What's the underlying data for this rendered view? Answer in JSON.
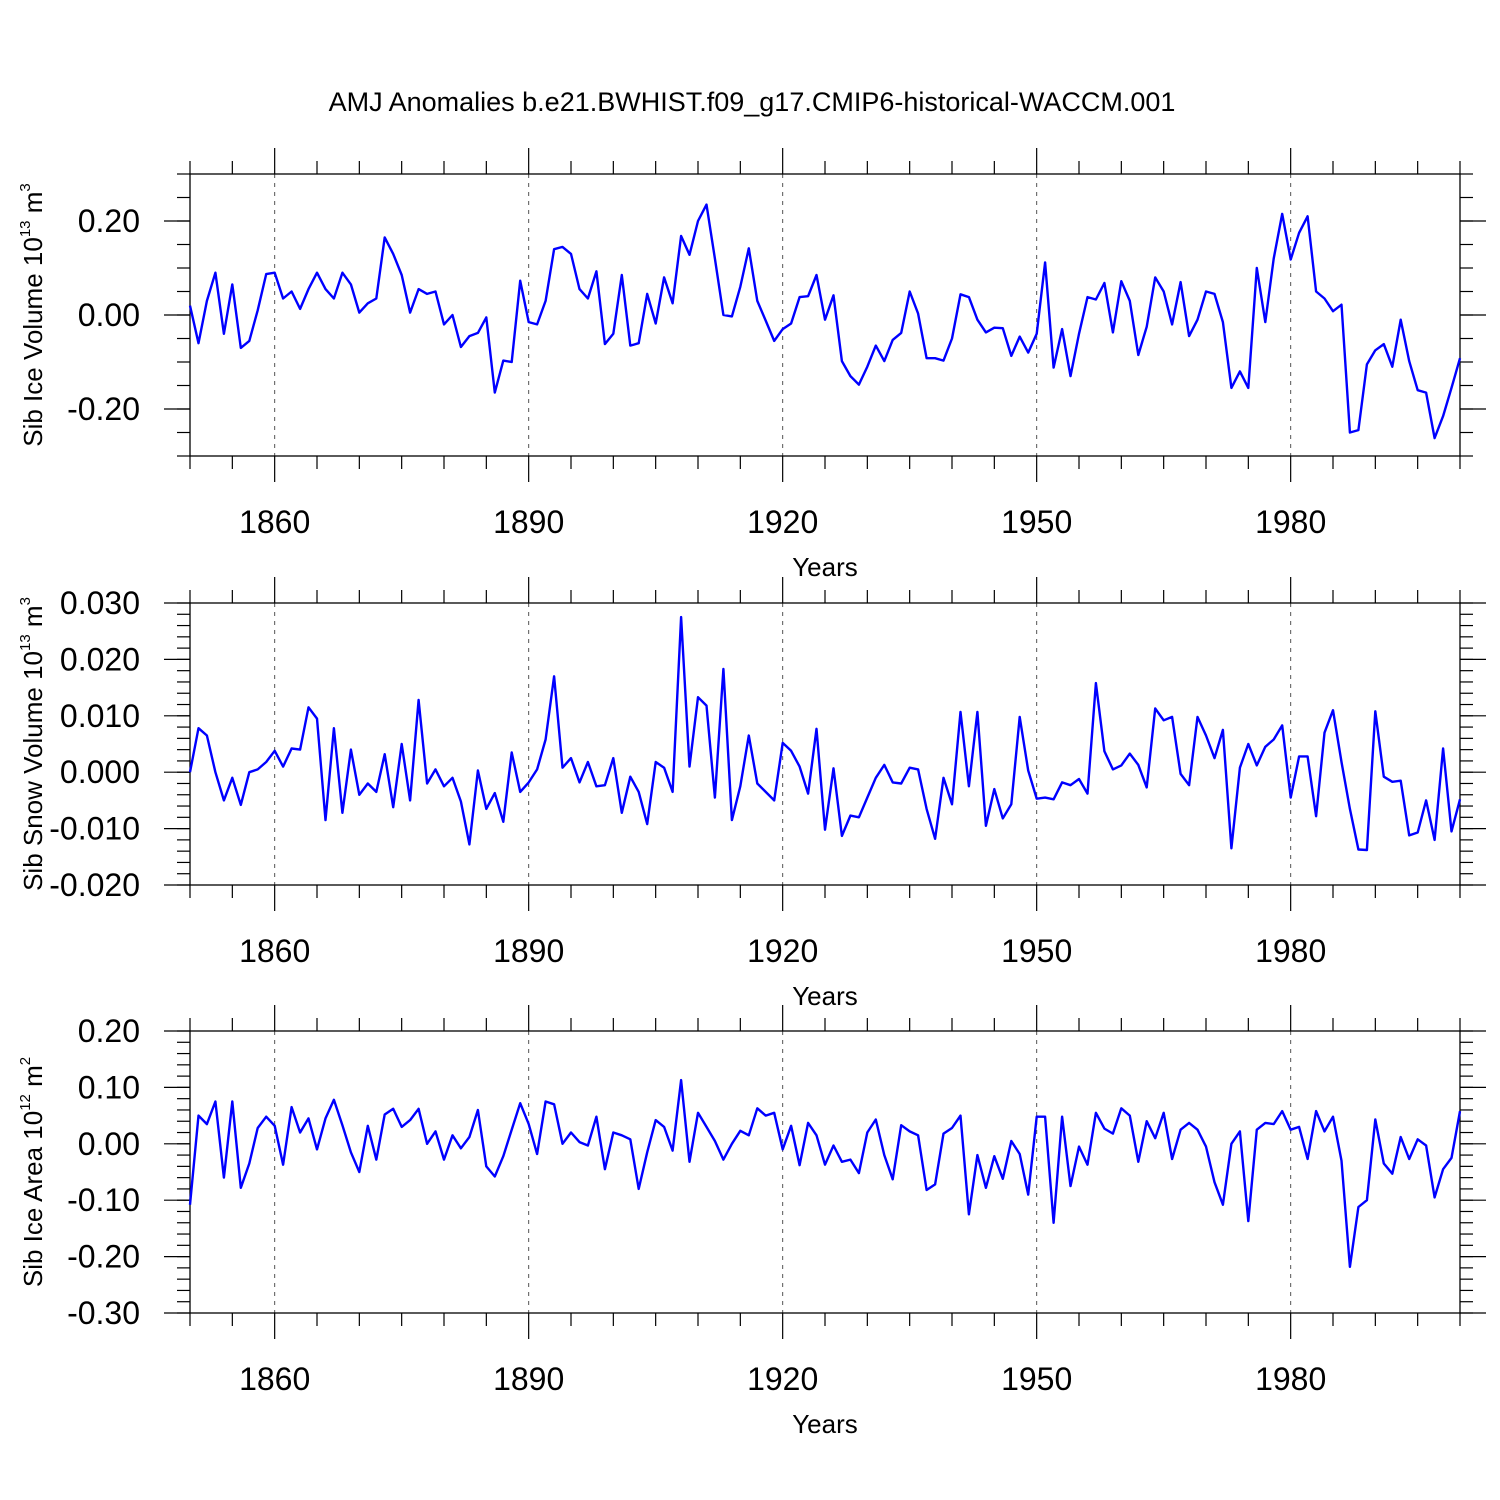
{
  "figure_title": "AMJ Anomalies b.e21.BWHIST.f09_g17.CMIP6-historical-WACCM.001",
  "series_color": "#0000ff",
  "chart_data": [
    {
      "type": "line",
      "ylabel": {
        "text": "Sib Ice Volume 10",
        "exponent": "13",
        "unit": " m",
        "unit_exponent": "3"
      },
      "xlabel": "Years",
      "xlim": [
        1850,
        2000
      ],
      "ylim": [
        -0.3,
        0.3
      ],
      "xticks": [
        1860,
        1890,
        1920,
        1950,
        1980
      ],
      "yticks": [
        -0.2,
        0.0,
        0.2
      ],
      "ytick_labels": [
        "-0.20",
        "0.00",
        "0.20"
      ],
      "ytick_minor_step": 0.05,
      "series": [
        {
          "name": "Sib Ice Volume",
          "start_year": 1850,
          "values": [
            0.02,
            -0.06,
            0.03,
            0.09,
            -0.04,
            0.065,
            -0.07,
            -0.055,
            0.01,
            0.087,
            0.09,
            0.035,
            0.05,
            0.013,
            0.055,
            0.09,
            0.055,
            0.035,
            0.09,
            0.065,
            0.005,
            0.025,
            0.035,
            0.165,
            0.13,
            0.085,
            0.005,
            0.055,
            0.045,
            0.05,
            -0.02,
            0.0,
            -0.068,
            -0.045,
            -0.038,
            -0.005,
            -0.165,
            -0.097,
            -0.1,
            0.073,
            -0.015,
            -0.02,
            0.03,
            0.14,
            0.145,
            0.13,
            0.055,
            0.035,
            0.093,
            -0.062,
            -0.04,
            0.085,
            -0.065,
            -0.06,
            0.045,
            -0.018,
            0.08,
            0.025,
            0.168,
            0.128,
            0.2,
            0.235,
            0.12,
            0.0,
            -0.003,
            0.06,
            0.142,
            0.03,
            -0.012,
            -0.055,
            -0.03,
            -0.018,
            0.038,
            0.04,
            0.085,
            -0.01,
            0.042,
            -0.098,
            -0.13,
            -0.148,
            -0.11,
            -0.065,
            -0.098,
            -0.053,
            -0.038,
            0.05,
            0.003,
            -0.092,
            -0.092,
            -0.097,
            -0.05,
            0.044,
            0.038,
            -0.01,
            -0.037,
            -0.027,
            -0.028,
            -0.087,
            -0.046,
            -0.08,
            -0.04,
            0.112,
            -0.112,
            -0.03,
            -0.13,
            -0.04,
            0.038,
            0.033,
            0.068,
            -0.037,
            0.072,
            0.03,
            -0.085,
            -0.025,
            0.08,
            0.05,
            -0.02,
            0.07,
            -0.045,
            -0.01,
            0.05,
            0.045,
            -0.015,
            -0.155,
            -0.12,
            -0.155,
            0.1,
            -0.015,
            0.12,
            0.215,
            0.118,
            0.175,
            0.21,
            0.05,
            0.035,
            0.008,
            0.022,
            -0.25,
            -0.245,
            -0.105,
            -0.075,
            -0.062,
            -0.11,
            -0.01,
            -0.098,
            -0.16,
            -0.165,
            -0.262,
            -0.215,
            -0.155,
            -0.092
          ]
        }
      ]
    },
    {
      "type": "line",
      "ylabel": {
        "text": "Sib Snow Volume 10",
        "exponent": "13",
        "unit": " m",
        "unit_exponent": "3"
      },
      "xlabel": "Years",
      "xlim": [
        1850,
        2000
      ],
      "ylim": [
        -0.02,
        0.03
      ],
      "xticks": [
        1860,
        1890,
        1920,
        1950,
        1980
      ],
      "yticks": [
        -0.02,
        -0.01,
        0.0,
        0.01,
        0.02,
        0.03
      ],
      "ytick_labels": [
        "-0.020",
        "-0.010",
        "0.000",
        "0.010",
        "0.020",
        "0.030"
      ],
      "ytick_minor_step": 0.002,
      "series": [
        {
          "name": "Sib Snow Volume",
          "start_year": 1850,
          "values": [
            0.0,
            0.0078,
            0.0065,
            0.0,
            -0.005,
            -0.001,
            -0.0058,
            0.0,
            0.0005,
            0.0018,
            0.0038,
            0.001,
            0.0042,
            0.004,
            0.0115,
            0.0095,
            -0.0085,
            0.0078,
            -0.0072,
            0.004,
            -0.004,
            -0.002,
            -0.0035,
            0.0032,
            -0.0062,
            0.005,
            -0.005,
            0.0128,
            -0.002,
            0.0005,
            -0.0025,
            -0.001,
            -0.0052,
            -0.0128,
            0.0003,
            -0.0065,
            -0.0037,
            -0.0088,
            0.0035,
            -0.0035,
            -0.0018,
            0.0005,
            0.0058,
            0.017,
            0.0008,
            0.0025,
            -0.0018,
            0.0018,
            -0.0025,
            -0.0023,
            0.0025,
            -0.0072,
            -0.0008,
            -0.0035,
            -0.0092,
            0.0018,
            0.0008,
            -0.0035,
            0.0275,
            0.001,
            0.0133,
            0.0118,
            -0.0045,
            0.0183,
            -0.0085,
            -0.0025,
            0.0065,
            -0.002,
            -0.0035,
            -0.005,
            0.0052,
            0.0038,
            0.001,
            -0.0038,
            0.0077,
            -0.0102,
            0.0007,
            -0.0113,
            -0.0077,
            -0.008,
            -0.0045,
            -0.001,
            0.0013,
            -0.0018,
            -0.002,
            0.0008,
            0.0005,
            -0.0065,
            -0.0118,
            -0.001,
            -0.0057,
            0.0107,
            -0.0025,
            0.0107,
            -0.0095,
            -0.003,
            -0.0082,
            -0.0057,
            0.0098,
            0.0003,
            -0.0047,
            -0.0045,
            -0.0048,
            -0.0018,
            -0.0023,
            -0.0012,
            -0.0038,
            0.0158,
            0.0037,
            0.0005,
            0.0012,
            0.0033,
            0.0013,
            -0.0027,
            0.0113,
            0.0092,
            0.0098,
            -0.0003,
            -0.0023,
            0.0098,
            0.0065,
            0.0025,
            0.0075,
            -0.0135,
            0.0008,
            0.005,
            0.0012,
            0.0045,
            0.0058,
            0.0083,
            -0.0045,
            0.0028,
            0.0028,
            -0.0078,
            0.007,
            0.011,
            0.0018,
            -0.0065,
            -0.0137,
            -0.0138,
            0.0108,
            -0.0008,
            -0.0017,
            -0.0015,
            -0.0112,
            -0.0107,
            -0.005,
            -0.012,
            0.0042,
            -0.0105,
            -0.0048
          ]
        }
      ]
    },
    {
      "type": "line",
      "ylabel": {
        "text": "Sib Ice Area 10",
        "exponent": "12",
        "unit": " m",
        "unit_exponent": "2"
      },
      "xlabel": "Years",
      "xlim": [
        1850,
        2000
      ],
      "ylim": [
        -0.3,
        0.2
      ],
      "xticks": [
        1860,
        1890,
        1920,
        1950,
        1980
      ],
      "yticks": [
        -0.3,
        -0.2,
        -0.1,
        0.0,
        0.1,
        0.2
      ],
      "ytick_labels": [
        "-0.30",
        "-0.20",
        "-0.10",
        "0.00",
        "0.10",
        "0.20"
      ],
      "ytick_minor_step": 0.02,
      "series": [
        {
          "name": "Sib Ice Area",
          "start_year": 1850,
          "values": [
            -0.108,
            0.05,
            0.035,
            0.075,
            -0.06,
            0.075,
            -0.078,
            -0.035,
            0.028,
            0.048,
            0.032,
            -0.037,
            0.065,
            0.02,
            0.045,
            -0.01,
            0.045,
            0.078,
            0.033,
            -0.015,
            -0.05,
            0.032,
            -0.028,
            0.052,
            0.062,
            0.03,
            0.042,
            0.062,
            0.0,
            0.022,
            -0.028,
            0.015,
            -0.008,
            0.012,
            0.06,
            -0.04,
            -0.058,
            -0.022,
            0.025,
            0.072,
            0.035,
            -0.018,
            0.075,
            0.07,
            0.0,
            0.02,
            0.003,
            -0.003,
            0.048,
            -0.045,
            0.02,
            0.015,
            0.008,
            -0.08,
            -0.015,
            0.042,
            0.03,
            -0.012,
            0.113,
            -0.032,
            0.055,
            0.03,
            0.005,
            -0.028,
            0.0,
            0.023,
            0.015,
            0.063,
            0.05,
            0.055,
            -0.01,
            0.032,
            -0.038,
            0.037,
            0.015,
            -0.037,
            -0.003,
            -0.032,
            -0.028,
            -0.052,
            0.02,
            0.043,
            -0.02,
            -0.063,
            0.033,
            0.022,
            0.015,
            -0.082,
            -0.072,
            0.018,
            0.028,
            0.05,
            -0.125,
            -0.02,
            -0.078,
            -0.022,
            -0.062,
            0.005,
            -0.018,
            -0.09,
            0.048,
            0.048,
            -0.14,
            0.048,
            -0.075,
            -0.005,
            -0.037,
            0.055,
            0.027,
            0.018,
            0.063,
            0.05,
            -0.032,
            0.04,
            0.01,
            0.055,
            -0.027,
            0.025,
            0.037,
            0.025,
            -0.005,
            -0.068,
            -0.108,
            0.0,
            0.022,
            -0.137,
            0.025,
            0.037,
            0.035,
            0.058,
            0.025,
            0.03,
            -0.027,
            0.058,
            0.022,
            0.048,
            -0.03,
            -0.218,
            -0.112,
            -0.1,
            0.043,
            -0.035,
            -0.053,
            0.012,
            -0.027,
            0.008,
            -0.003,
            -0.095,
            -0.045,
            -0.025,
            0.058
          ]
        }
      ]
    }
  ]
}
